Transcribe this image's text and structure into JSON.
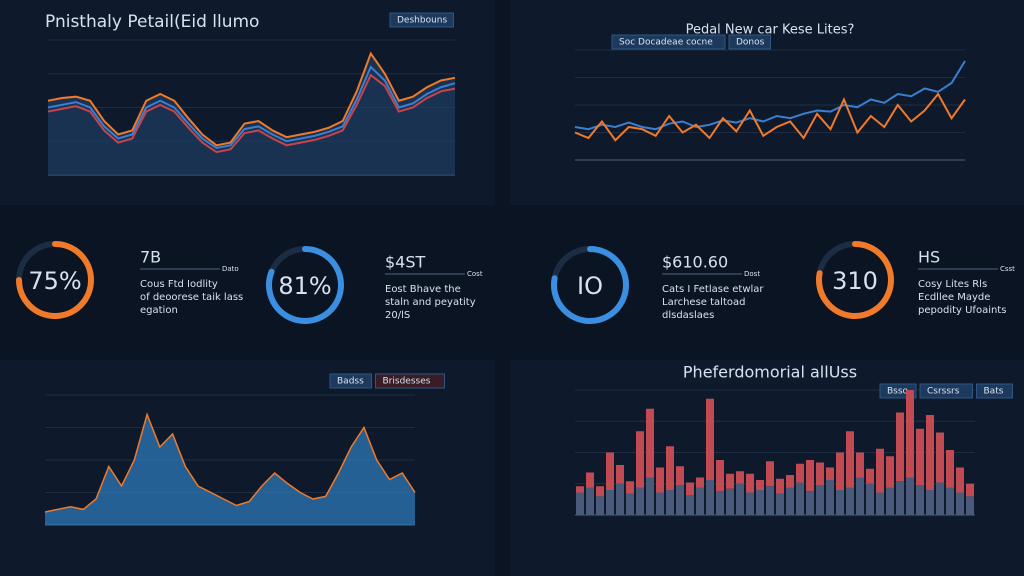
{
  "chart_data": [
    {
      "type": "line",
      "title": "Pnisthaly Petail(Eid llumo",
      "legend": [
        "Deshbouns"
      ],
      "ylim": [
        0,
        100
      ],
      "series": [
        {
          "name": "Orange",
          "color": "#f07a2a",
          "values": [
            55,
            57,
            58,
            55,
            40,
            30,
            33,
            55,
            60,
            55,
            42,
            30,
            22,
            24,
            38,
            40,
            33,
            28,
            30,
            32,
            35,
            40,
            62,
            90,
            75,
            55,
            58,
            65,
            70,
            72
          ]
        },
        {
          "name": "Blue",
          "color": "#3a7fd0",
          "values": [
            50,
            52,
            54,
            50,
            36,
            27,
            30,
            50,
            55,
            50,
            38,
            27,
            20,
            22,
            34,
            36,
            30,
            25,
            27,
            29,
            32,
            36,
            56,
            80,
            70,
            50,
            53,
            60,
            65,
            68
          ]
        },
        {
          "name": "Red",
          "color": "#c8444c",
          "values": [
            47,
            49,
            51,
            47,
            33,
            24,
            27,
            47,
            52,
            47,
            35,
            24,
            17,
            19,
            31,
            33,
            27,
            22,
            24,
            26,
            29,
            33,
            52,
            74,
            66,
            47,
            50,
            57,
            62,
            64
          ]
        }
      ]
    },
    {
      "type": "line",
      "title": "Pedal New car Kese Lites?",
      "legend": [
        "Soc Docadeae cocne",
        "Donos"
      ],
      "ylim": [
        0,
        100
      ],
      "series": [
        {
          "name": "Blue",
          "color": "#3a7fd0",
          "values": [
            30,
            28,
            32,
            30,
            34,
            30,
            28,
            33,
            35,
            30,
            32,
            36,
            34,
            38,
            35,
            40,
            38,
            42,
            45,
            44,
            50,
            48,
            55,
            52,
            60,
            58,
            65,
            62,
            70,
            90
          ]
        },
        {
          "name": "Orange",
          "color": "#f07a2a",
          "values": [
            25,
            20,
            35,
            18,
            30,
            28,
            22,
            40,
            25,
            32,
            20,
            38,
            26,
            45,
            22,
            30,
            35,
            20,
            42,
            28,
            55,
            25,
            40,
            30,
            50,
            35,
            45,
            60,
            38,
            55
          ]
        }
      ]
    },
    {
      "type": "area",
      "legend": [
        "Badss",
        "Brisdesses"
      ],
      "ylim": [
        0,
        100
      ],
      "color": "#2e78b8",
      "line_color": "#f07a2a",
      "values": [
        10,
        12,
        14,
        12,
        20,
        45,
        30,
        50,
        85,
        60,
        70,
        45,
        30,
        25,
        20,
        15,
        18,
        30,
        40,
        32,
        25,
        20,
        22,
        40,
        60,
        75,
        50,
        35,
        40,
        25
      ]
    },
    {
      "type": "stacked_bar",
      "title": "Pheferdomorial allUss",
      "legend": [
        "Bsso",
        "Csrssrs",
        "Bats"
      ],
      "ylim": [
        0,
        100
      ],
      "series": [
        {
          "name": "Base",
          "color": "#4a5a7a",
          "values": [
            18,
            22,
            15,
            20,
            25,
            17,
            22,
            30,
            18,
            20,
            24,
            16,
            22,
            28,
            19,
            21,
            25,
            18,
            20,
            23,
            17,
            22,
            26,
            19,
            24,
            28,
            20,
            22,
            30,
            25,
            18,
            22,
            27,
            30,
            24,
            20,
            26,
            22,
            18,
            15
          ]
        },
        {
          "name": "Top",
          "color": "#c24a52",
          "values": [
            5,
            12,
            8,
            30,
            15,
            10,
            45,
            55,
            20,
            35,
            15,
            10,
            8,
            65,
            25,
            12,
            10,
            15,
            8,
            20,
            12,
            10,
            15,
            25,
            18,
            10,
            30,
            45,
            20,
            12,
            35,
            25,
            55,
            70,
            45,
            60,
            40,
            30,
            20,
            10
          ]
        }
      ]
    }
  ],
  "kpis": [
    {
      "label": "75%",
      "percent": 75,
      "color": "#f07a2a",
      "head": "7B",
      "tag": "Dato",
      "lines": [
        "Cous Ftd Iodlity",
        "of deoorese taik lass",
        "egation"
      ]
    },
    {
      "label": "81%",
      "percent": 81,
      "color": "#3a8fe0",
      "head": "$4ST",
      "tag": "Cost",
      "lines": [
        "Eost Bhave the",
        "staln and peyatity",
        "20/lS"
      ]
    },
    {
      "label": "IO",
      "color": "#3a8fe0",
      "head": "$610.60",
      "tag": "Dost",
      "lines": [
        "Cats I Fetlase etwlar",
        "Larchese taltoad",
        "dlsdaslaes"
      ]
    },
    {
      "label": "310",
      "color": "#f07a2a",
      "head": "HS",
      "tag": "Csst",
      "lines": [
        "Cosy Lites Rls",
        "Ecdllee Mayde",
        "pepodity Ufoaints"
      ]
    }
  ]
}
